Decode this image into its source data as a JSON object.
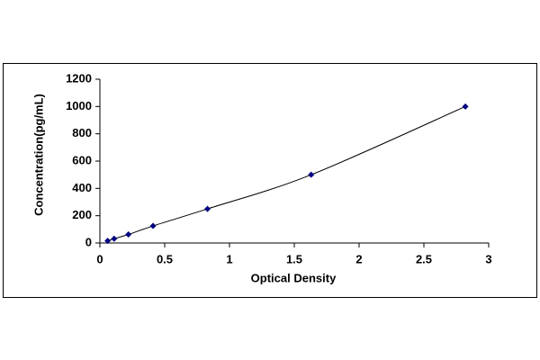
{
  "chart_data": {
    "type": "scatter",
    "x_label": "Optical Density",
    "y_label": "Concentration(pg/mL)",
    "x": [
      0.06,
      0.11,
      0.22,
      0.41,
      0.83,
      1.63,
      2.82
    ],
    "values": [
      15.6,
      31.25,
      62.5,
      125,
      250,
      500,
      1000
    ],
    "color": "#000080",
    "line": true,
    "xlim": [
      0,
      3
    ],
    "xticks": [
      0,
      0.5,
      1,
      1.5,
      2,
      2.5,
      3
    ],
    "ylim": [
      0,
      1200
    ],
    "yticks": [
      0,
      200,
      400,
      600,
      800,
      1000,
      1200
    ],
    "grid": false
  }
}
